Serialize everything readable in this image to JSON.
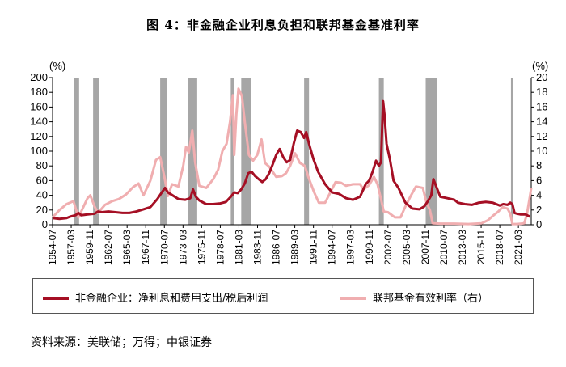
{
  "chart_data": {
    "type": "line",
    "title": "图 4：非金融企业利息负担和联邦基金基准利率",
    "left_unit": "(%)",
    "right_unit": "(%)",
    "ylim_left": [
      0,
      200
    ],
    "ylim_right": [
      0,
      20
    ],
    "left_ticks": [
      0,
      20,
      40,
      60,
      80,
      100,
      120,
      140,
      160,
      180,
      200
    ],
    "right_ticks": [
      0,
      2,
      4,
      6,
      8,
      10,
      12,
      14,
      16,
      18,
      20
    ],
    "x_range": [
      1954.5,
      2023.0
    ],
    "x_tick_labels": [
      "1954-07",
      "1957-03",
      "1959-11",
      "1962-07",
      "1965-03",
      "1967-11",
      "1970-07",
      "1973-03",
      "1975-11",
      "1978-07",
      "1981-03",
      "1983-11",
      "1986-07",
      "1989-03",
      "1991-11",
      "1994-07",
      "1997-03",
      "1999-11",
      "2002-07",
      "2005-03",
      "2007-11",
      "2010-07",
      "2013-03",
      "2015-11",
      "2018-07",
      "2021-03"
    ],
    "recessions": [
      [
        1957.6,
        1958.3
      ],
      [
        1960.3,
        1961.1
      ],
      [
        1969.9,
        1970.9
      ],
      [
        1973.9,
        1975.2
      ],
      [
        1980.0,
        1980.5
      ],
      [
        1981.5,
        1982.9
      ],
      [
        1990.5,
        1991.2
      ],
      [
        2001.2,
        2001.9
      ],
      [
        2007.9,
        2009.5
      ],
      [
        2020.1,
        2020.4
      ]
    ],
    "series": [
      {
        "name": "非金融企业：净利息和费用支出/税后利润",
        "axis": "left",
        "color": "#a50f24",
        "points": [
          [
            1954.5,
            9
          ],
          [
            1955.5,
            8
          ],
          [
            1956.5,
            9
          ],
          [
            1957.0,
            11
          ],
          [
            1957.8,
            13
          ],
          [
            1958.2,
            16
          ],
          [
            1958.6,
            13
          ],
          [
            1959.5,
            14
          ],
          [
            1960.5,
            15
          ],
          [
            1961.0,
            18
          ],
          [
            1961.5,
            17
          ],
          [
            1962.5,
            18
          ],
          [
            1963.5,
            17
          ],
          [
            1964.5,
            16
          ],
          [
            1965.5,
            16
          ],
          [
            1966.5,
            18
          ],
          [
            1967.5,
            21
          ],
          [
            1968.5,
            24
          ],
          [
            1969.5,
            35
          ],
          [
            1970.2,
            45
          ],
          [
            1970.6,
            50
          ],
          [
            1971.0,
            44
          ],
          [
            1971.5,
            41
          ],
          [
            1972.5,
            35
          ],
          [
            1973.5,
            34
          ],
          [
            1974.2,
            36
          ],
          [
            1974.6,
            48
          ],
          [
            1975.0,
            38
          ],
          [
            1975.5,
            33
          ],
          [
            1976.5,
            28
          ],
          [
            1977.5,
            28
          ],
          [
            1978.5,
            29
          ],
          [
            1979.3,
            31
          ],
          [
            1980.0,
            38
          ],
          [
            1980.5,
            44
          ],
          [
            1981.0,
            43
          ],
          [
            1981.5,
            48
          ],
          [
            1982.0,
            56
          ],
          [
            1982.5,
            70
          ],
          [
            1983.0,
            72
          ],
          [
            1983.5,
            66
          ],
          [
            1984.0,
            62
          ],
          [
            1984.5,
            58
          ],
          [
            1985.0,
            62
          ],
          [
            1985.5,
            70
          ],
          [
            1986.0,
            82
          ],
          [
            1986.5,
            95
          ],
          [
            1987.0,
            103
          ],
          [
            1987.5,
            92
          ],
          [
            1988.0,
            85
          ],
          [
            1988.5,
            88
          ],
          [
            1989.0,
            110
          ],
          [
            1989.5,
            128
          ],
          [
            1990.0,
            126
          ],
          [
            1990.5,
            118
          ],
          [
            1990.8,
            126
          ],
          [
            1991.2,
            110
          ],
          [
            1991.8,
            90
          ],
          [
            1992.5,
            72
          ],
          [
            1993.5,
            55
          ],
          [
            1994.5,
            44
          ],
          [
            1995.5,
            42
          ],
          [
            1996.5,
            36
          ],
          [
            1997.5,
            34
          ],
          [
            1998.5,
            38
          ],
          [
            1999.3,
            55
          ],
          [
            1999.8,
            60
          ],
          [
            2000.3,
            72
          ],
          [
            2000.8,
            87
          ],
          [
            2001.2,
            80
          ],
          [
            2001.5,
            85
          ],
          [
            2001.8,
            168
          ],
          [
            2002.0,
            150
          ],
          [
            2002.3,
            110
          ],
          [
            2002.8,
            88
          ],
          [
            2003.3,
            60
          ],
          [
            2004.0,
            50
          ],
          [
            2004.5,
            40
          ],
          [
            2005.0,
            30
          ],
          [
            2006.0,
            22
          ],
          [
            2007.0,
            21
          ],
          [
            2007.7,
            25
          ],
          [
            2008.2,
            32
          ],
          [
            2008.7,
            40
          ],
          [
            2009.0,
            62
          ],
          [
            2009.4,
            52
          ],
          [
            2010.0,
            38
          ],
          [
            2011.0,
            36
          ],
          [
            2012.0,
            34
          ],
          [
            2012.5,
            30
          ],
          [
            2013.5,
            28
          ],
          [
            2014.5,
            27
          ],
          [
            2015.5,
            30
          ],
          [
            2016.5,
            31
          ],
          [
            2017.5,
            30
          ],
          [
            2018.5,
            26
          ],
          [
            2019.0,
            28
          ],
          [
            2019.6,
            27
          ],
          [
            2020.0,
            30
          ],
          [
            2020.3,
            28
          ],
          [
            2020.6,
            16
          ],
          [
            2021.0,
            15
          ],
          [
            2021.5,
            14
          ],
          [
            2022.2,
            14
          ],
          [
            2022.8,
            11
          ]
        ]
      },
      {
        "name": "联邦基金有效利率（右）",
        "axis": "right",
        "color": "#f0aeb0",
        "points": [
          [
            1954.5,
            1.0
          ],
          [
            1955.5,
            2.0
          ],
          [
            1956.5,
            2.8
          ],
          [
            1957.5,
            3.2
          ],
          [
            1958.2,
            1.0
          ],
          [
            1958.8,
            2.2
          ],
          [
            1959.5,
            3.6
          ],
          [
            1959.9,
            4.0
          ],
          [
            1960.5,
            2.5
          ],
          [
            1961.0,
            1.6
          ],
          [
            1962.0,
            2.7
          ],
          [
            1963.0,
            3.2
          ],
          [
            1964.0,
            3.5
          ],
          [
            1965.0,
            4.1
          ],
          [
            1966.0,
            5.1
          ],
          [
            1966.8,
            5.6
          ],
          [
            1967.5,
            4.0
          ],
          [
            1968.5,
            6.0
          ],
          [
            1969.3,
            8.8
          ],
          [
            1969.9,
            9.2
          ],
          [
            1970.5,
            6.5
          ],
          [
            1971.0,
            3.9
          ],
          [
            1971.6,
            5.5
          ],
          [
            1972.5,
            5.2
          ],
          [
            1973.2,
            8.0
          ],
          [
            1973.6,
            10.6
          ],
          [
            1974.0,
            9.8
          ],
          [
            1974.5,
            12.8
          ],
          [
            1974.9,
            8.5
          ],
          [
            1975.5,
            5.3
          ],
          [
            1976.5,
            5.0
          ],
          [
            1977.5,
            6.2
          ],
          [
            1978.2,
            7.5
          ],
          [
            1978.8,
            10.0
          ],
          [
            1979.4,
            11.0
          ],
          [
            1979.9,
            14.0
          ],
          [
            1980.3,
            17.6
          ],
          [
            1980.5,
            9.5
          ],
          [
            1980.8,
            15.0
          ],
          [
            1981.1,
            18.5
          ],
          [
            1981.6,
            17.5
          ],
          [
            1982.0,
            14.0
          ],
          [
            1982.6,
            9.5
          ],
          [
            1983.2,
            8.7
          ],
          [
            1983.8,
            9.5
          ],
          [
            1984.4,
            11.6
          ],
          [
            1984.9,
            8.4
          ],
          [
            1985.5,
            7.9
          ],
          [
            1986.5,
            6.5
          ],
          [
            1987.3,
            6.6
          ],
          [
            1987.9,
            7.0
          ],
          [
            1988.5,
            8.0
          ],
          [
            1989.2,
            9.7
          ],
          [
            1989.9,
            8.4
          ],
          [
            1990.6,
            8.0
          ],
          [
            1991.1,
            6.5
          ],
          [
            1991.9,
            4.5
          ],
          [
            1992.6,
            3.0
          ],
          [
            1993.5,
            3.0
          ],
          [
            1994.3,
            4.5
          ],
          [
            1995.0,
            5.8
          ],
          [
            1995.8,
            5.7
          ],
          [
            1996.5,
            5.3
          ],
          [
            1997.5,
            5.5
          ],
          [
            1998.5,
            5.5
          ],
          [
            1999.0,
            4.8
          ],
          [
            1999.8,
            5.4
          ],
          [
            2000.5,
            6.5
          ],
          [
            2001.0,
            5.5
          ],
          [
            2001.5,
            3.5
          ],
          [
            2001.9,
            1.8
          ],
          [
            2002.5,
            1.7
          ],
          [
            2003.5,
            1.0
          ],
          [
            2004.3,
            1.0
          ],
          [
            2005.0,
            2.5
          ],
          [
            2005.8,
            4.0
          ],
          [
            2006.5,
            5.2
          ],
          [
            2007.5,
            5.0
          ],
          [
            2008.0,
            3.0
          ],
          [
            2008.5,
            2.0
          ],
          [
            2008.9,
            0.2
          ],
          [
            2010.0,
            0.15
          ],
          [
            2012.0,
            0.15
          ],
          [
            2014.0,
            0.1
          ],
          [
            2015.9,
            0.2
          ],
          [
            2016.8,
            0.6
          ],
          [
            2017.5,
            1.2
          ],
          [
            2018.3,
            1.8
          ],
          [
            2018.9,
            2.4
          ],
          [
            2019.6,
            2.2
          ],
          [
            2020.0,
            1.5
          ],
          [
            2020.3,
            0.1
          ],
          [
            2021.0,
            0.1
          ],
          [
            2022.0,
            0.2
          ],
          [
            2022.4,
            1.5
          ],
          [
            2022.8,
            3.8
          ],
          [
            2023.0,
            5.0
          ]
        ]
      }
    ]
  },
  "source": "资料来源：美联储；万得；中银证券"
}
